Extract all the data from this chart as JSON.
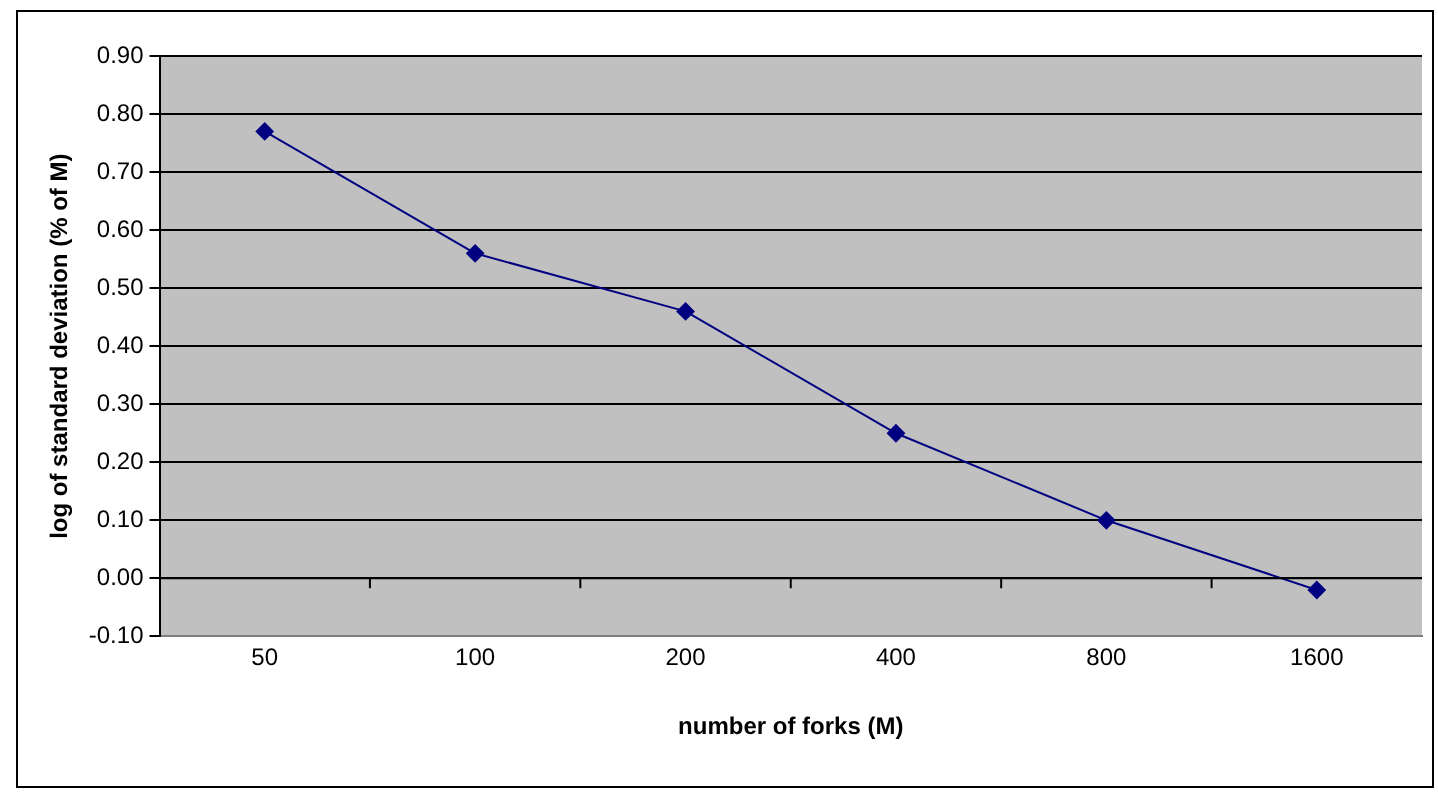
{
  "chart_data": {
    "type": "line",
    "xlabel": "number of forks (M)",
    "ylabel": "log of standard deviation (% of M)",
    "categories": [
      "50",
      "100",
      "200",
      "400",
      "800",
      "1600"
    ],
    "series": [
      {
        "color": "#000080",
        "values": [
          0.77,
          0.56,
          0.46,
          0.25,
          0.1,
          -0.02
        ]
      }
    ],
    "ylim": [
      -0.1,
      0.9
    ],
    "yticks": [
      {
        "value": -0.1,
        "label": "-0.10"
      },
      {
        "value": 0,
        "label": "0.00"
      },
      {
        "value": 0.1,
        "label": "0.10"
      },
      {
        "value": 0.2,
        "label": "0.20"
      },
      {
        "value": 0.3,
        "label": "0.30"
      },
      {
        "value": 0.4,
        "label": "0.40"
      },
      {
        "value": 0.5,
        "label": "0.50"
      },
      {
        "value": 0.6,
        "label": "0.60"
      },
      {
        "value": 0.7,
        "label": "0.70"
      },
      {
        "value": 0.8,
        "label": "0.80"
      },
      {
        "value": 0.9,
        "label": "0.90"
      }
    ],
    "grid": "y",
    "marker": "diamond",
    "line_style": "solid",
    "legend": false
  }
}
